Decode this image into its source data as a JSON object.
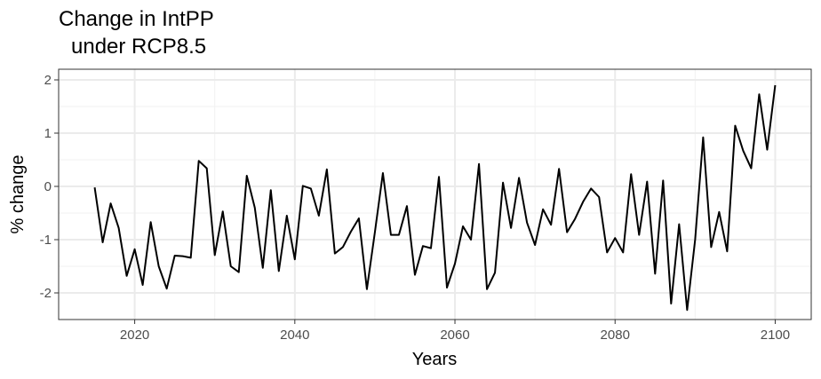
{
  "chart_data": {
    "type": "line",
    "title_lines": [
      "Change in IntPP",
      "under RCP8.5"
    ],
    "xlabel": "Years",
    "ylabel": "% change",
    "xlim": [
      2010.5,
      2104.5
    ],
    "ylim": [
      -2.5,
      2.2
    ],
    "x_ticks": [
      2020,
      2040,
      2060,
      2080,
      2100
    ],
    "x_tick_labels": [
      "2020",
      "2040",
      "2060",
      "2080",
      "2100"
    ],
    "y_ticks": [
      -2,
      -1,
      0,
      1,
      2
    ],
    "y_tick_labels": [
      "-2",
      "-1",
      "0",
      "1",
      "2"
    ],
    "grid": true,
    "colors": {
      "line": "#000000",
      "grid_major": "#ebebeb",
      "grid_minor": "#f2f2f2",
      "border": "#333333"
    },
    "series": [
      {
        "x": [
          2015,
          2016,
          2017,
          2018,
          2019,
          2020,
          2021,
          2022,
          2023,
          2024,
          2025,
          2026,
          2027,
          2028,
          2029,
          2030,
          2031,
          2032,
          2033,
          2034,
          2035,
          2036,
          2037,
          2038,
          2039,
          2040,
          2041,
          2042,
          2043,
          2044,
          2045,
          2046,
          2047,
          2048,
          2049,
          2050,
          2051,
          2052,
          2053,
          2054,
          2055,
          2056,
          2057,
          2058,
          2059,
          2060,
          2061,
          2062,
          2063,
          2064,
          2065,
          2066,
          2067,
          2068,
          2069,
          2070,
          2071,
          2072,
          2073,
          2074,
          2075,
          2076,
          2077,
          2078,
          2079,
          2080,
          2081,
          2082,
          2083,
          2084,
          2085,
          2086,
          2087,
          2088,
          2089,
          2090,
          2091,
          2092,
          2093,
          2094,
          2095,
          2096,
          2097,
          2098,
          2099,
          2100
        ],
        "values": [
          -0.02,
          -1.05,
          -0.32,
          -0.78,
          -1.68,
          -1.18,
          -1.85,
          -0.67,
          -1.5,
          -1.92,
          -1.3,
          -1.31,
          -1.34,
          0.48,
          0.34,
          -1.29,
          -0.47,
          -1.5,
          -1.61,
          0.2,
          -0.4,
          -1.53,
          -0.07,
          -1.59,
          -0.55,
          -1.37,
          0.01,
          -0.04,
          -0.55,
          0.32,
          -1.26,
          -1.14,
          -0.85,
          -0.6,
          -1.93,
          -0.86,
          0.25,
          -0.91,
          -0.91,
          -0.37,
          -1.66,
          -1.12,
          -1.16,
          0.18,
          -1.9,
          -1.45,
          -0.75,
          -1.0,
          0.42,
          -1.93,
          -1.62,
          0.07,
          -0.78,
          0.16,
          -0.68,
          -1.1,
          -0.43,
          -0.72,
          0.33,
          -0.86,
          -0.61,
          -0.29,
          -0.04,
          -0.2,
          -1.24,
          -0.97,
          -1.24,
          0.23,
          -0.91,
          0.09,
          -1.64,
          0.11,
          -2.2,
          -0.71,
          -2.32,
          -1.0,
          0.92,
          -1.14,
          -0.48,
          -1.22,
          1.14,
          0.67,
          0.34,
          1.73,
          0.69,
          1.9
        ]
      }
    ]
  }
}
